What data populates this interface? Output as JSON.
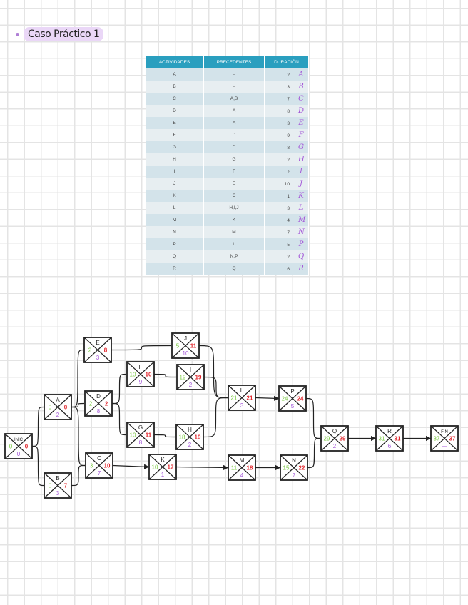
{
  "title": "Caso Práctico 1",
  "table": {
    "headers": [
      "ACTIVIDADES",
      "PRECEDENTES",
      "DURACIÓN"
    ],
    "rows": [
      {
        "act": "A",
        "prec": "--",
        "dur": "2",
        "hand": "A"
      },
      {
        "act": "B",
        "prec": "--",
        "dur": "3",
        "hand": "B"
      },
      {
        "act": "C",
        "prec": "A,B",
        "dur": "7",
        "hand": "C"
      },
      {
        "act": "D",
        "prec": "A",
        "dur": "8",
        "hand": "D"
      },
      {
        "act": "E",
        "prec": "A",
        "dur": "3",
        "hand": "E"
      },
      {
        "act": "F",
        "prec": "D",
        "dur": "9",
        "hand": "F"
      },
      {
        "act": "G",
        "prec": "D",
        "dur": "8",
        "hand": "G"
      },
      {
        "act": "H",
        "prec": "G",
        "dur": "2",
        "hand": "H"
      },
      {
        "act": "I",
        "prec": "F",
        "dur": "2",
        "hand": "I"
      },
      {
        "act": "J",
        "prec": "E",
        "dur": "10",
        "hand": "J"
      },
      {
        "act": "K",
        "prec": "C",
        "dur": "1",
        "hand": "K"
      },
      {
        "act": "L",
        "prec": "H,I,J",
        "dur": "3",
        "hand": "L"
      },
      {
        "act": "M",
        "prec": "K",
        "dur": "4",
        "hand": "M"
      },
      {
        "act": "N",
        "prec": "M",
        "dur": "7",
        "hand": "N"
      },
      {
        "act": "P",
        "prec": "L",
        "dur": "5",
        "hand": "P"
      },
      {
        "act": "Q",
        "prec": "N,P",
        "dur": "2",
        "hand": "Q"
      },
      {
        "act": "R",
        "prec": "Q",
        "dur": "6",
        "hand": "R"
      }
    ]
  },
  "colors": {
    "early_start": "#7ac943",
    "late_start": "#e0242a",
    "duration": "#a356d8",
    "header": "#2a9fbf"
  },
  "network": {
    "nodes": [
      {
        "id": "INIC",
        "label": "INIC",
        "es": "0",
        "ls": "0",
        "dur": "0"
      },
      {
        "id": "A",
        "label": "A",
        "es": "0",
        "ls": "0",
        "dur": "2"
      },
      {
        "id": "B",
        "label": "B",
        "es": "0",
        "ls": "7",
        "dur": "3"
      },
      {
        "id": "E",
        "label": "E",
        "es": "2",
        "ls": "8",
        "dur": "3"
      },
      {
        "id": "D",
        "label": "D",
        "es": "2",
        "ls": "2",
        "dur": "8"
      },
      {
        "id": "C",
        "label": "C",
        "es": "3",
        "ls": "10",
        "dur": "7"
      },
      {
        "id": "F",
        "label": "F",
        "es": "10",
        "ls": "10",
        "dur": "9"
      },
      {
        "id": "G",
        "label": "G",
        "es": "10",
        "ls": "11",
        "dur": "8"
      },
      {
        "id": "J",
        "label": "J",
        "es": "5",
        "ls": "11",
        "dur": "10"
      },
      {
        "id": "I",
        "label": "I",
        "es": "19",
        "ls": "19",
        "dur": "2"
      },
      {
        "id": "H",
        "label": "H",
        "es": "18",
        "ls": "19",
        "dur": "2"
      },
      {
        "id": "K",
        "label": "K",
        "es": "10",
        "ls": "17",
        "dur": "1"
      },
      {
        "id": "L",
        "label": "L",
        "es": "21",
        "ls": "21",
        "dur": "3"
      },
      {
        "id": "P",
        "label": "P",
        "es": "24",
        "ls": "24",
        "dur": "5"
      },
      {
        "id": "M",
        "label": "M",
        "es": "11",
        "ls": "18",
        "dur": "4"
      },
      {
        "id": "N",
        "label": "N",
        "es": "15",
        "ls": "22",
        "dur": "7"
      },
      {
        "id": "Q",
        "label": "Q",
        "es": "29",
        "ls": "29",
        "dur": "2"
      },
      {
        "id": "R",
        "label": "R",
        "es": "31",
        "ls": "31",
        "dur": "6"
      },
      {
        "id": "FIN",
        "label": "FIN",
        "es": "37",
        "ls": "37",
        "dur": "—"
      }
    ],
    "edges": [
      [
        "INIC",
        "A"
      ],
      [
        "INIC",
        "B"
      ],
      [
        "A",
        "E"
      ],
      [
        "A",
        "D"
      ],
      [
        "A",
        "C"
      ],
      [
        "B",
        "C"
      ],
      [
        "E",
        "J"
      ],
      [
        "D",
        "F"
      ],
      [
        "D",
        "G"
      ],
      [
        "F",
        "I"
      ],
      [
        "G",
        "H"
      ],
      [
        "C",
        "K"
      ],
      [
        "J",
        "L"
      ],
      [
        "I",
        "L"
      ],
      [
        "H",
        "L"
      ],
      [
        "K",
        "M"
      ],
      [
        "L",
        "P"
      ],
      [
        "M",
        "N"
      ],
      [
        "P",
        "Q"
      ],
      [
        "N",
        "Q"
      ],
      [
        "Q",
        "R"
      ],
      [
        "R",
        "FIN"
      ]
    ]
  }
}
